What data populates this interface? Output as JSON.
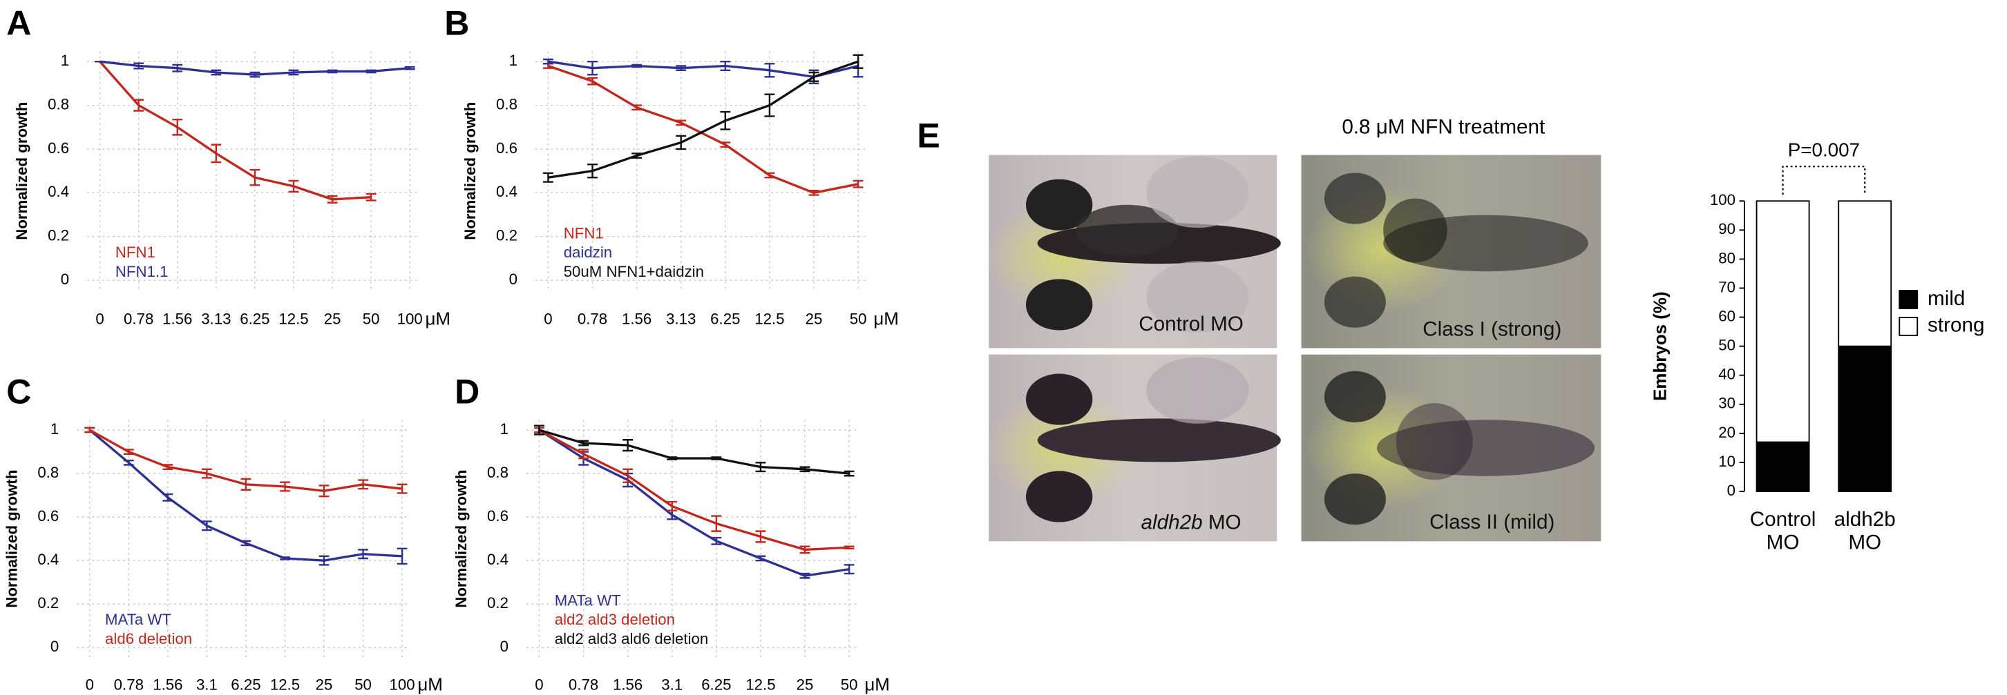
{
  "chart_data": [
    {
      "type": "line",
      "panel_label": "A",
      "ylabel": "Normalized growth",
      "categories": [
        "0",
        "0.78",
        "1.56",
        "3.13",
        "6.25",
        "12.5",
        "25",
        "50",
        "100"
      ],
      "x_unit": "μM",
      "ylim": [
        0,
        1
      ],
      "yticks": [
        0,
        0.2,
        0.4,
        0.6,
        0.8,
        1
      ],
      "grid": true,
      "series": [
        {
          "name": "NFN1",
          "color": "#c0281e",
          "values": [
            1,
            0.8,
            0.7,
            0.58,
            0.47,
            0.43,
            0.37,
            0.38,
            null
          ],
          "errors": [
            0,
            0.025,
            0.035,
            0.04,
            0.035,
            0.025,
            0.015,
            0.015,
            null
          ]
        },
        {
          "name": "NFN1.1",
          "color": "#2e3192",
          "values": [
            1,
            0.98,
            0.97,
            0.95,
            0.94,
            0.95,
            0.955,
            0.955,
            0.97
          ],
          "errors": [
            0,
            0.012,
            0.015,
            0.01,
            0.01,
            0.01,
            0.005,
            0.005,
            0.005
          ]
        }
      ]
    },
    {
      "type": "line",
      "panel_label": "B",
      "ylabel": "Normalized growth",
      "categories": [
        "0",
        "0.78",
        "1.56",
        "3.13",
        "6.25",
        "12.5",
        "25",
        "50"
      ],
      "x_unit": "μM",
      "ylim": [
        0,
        1
      ],
      "yticks": [
        0,
        0.2,
        0.4,
        0.6,
        0.8,
        1
      ],
      "grid": true,
      "series": [
        {
          "name": "NFN1",
          "color": "#c0281e",
          "values": [
            0.98,
            0.91,
            0.79,
            0.72,
            0.62,
            0.48,
            0.4,
            0.44
          ],
          "errors": [
            0.01,
            0.015,
            0.01,
            0.01,
            0.01,
            0.01,
            0.01,
            0.015
          ]
        },
        {
          "name": "daidzin",
          "color": "#2e3192",
          "values": [
            1,
            0.97,
            0.98,
            0.97,
            0.98,
            0.96,
            0.93,
            0.98
          ],
          "errors": [
            0.01,
            0.03,
            0.005,
            0.01,
            0.02,
            0.03,
            0.03,
            0.05
          ]
        },
        {
          "name": "50uM NFN1+daidzin",
          "color": "#111111",
          "values": [
            0.47,
            0.5,
            0.57,
            0.63,
            0.73,
            0.8,
            0.93,
            1
          ],
          "errors": [
            0.02,
            0.03,
            0.01,
            0.03,
            0.04,
            0.05,
            0.02,
            0.03
          ]
        }
      ]
    },
    {
      "type": "line",
      "panel_label": "C",
      "ylabel": "Normalized growth",
      "categories": [
        "0",
        "0.78",
        "1.56",
        "3.1",
        "6.25",
        "12.5",
        "25",
        "50",
        "100"
      ],
      "x_unit": "μM",
      "ylim": [
        0,
        1
      ],
      "yticks": [
        0,
        0.2,
        0.4,
        0.6,
        0.8,
        1
      ],
      "grid": true,
      "series": [
        {
          "name": "MATa WT",
          "color": "#2e3192",
          "values": [
            1,
            0.85,
            0.69,
            0.56,
            0.48,
            0.41,
            0.4,
            0.43,
            0.42
          ],
          "errors": [
            0.01,
            0.01,
            0.015,
            0.02,
            0.01,
            0.005,
            0.02,
            0.02,
            0.035
          ]
        },
        {
          "name": "ald6 deletion",
          "color": "#c0281e",
          "values": [
            1,
            0.9,
            0.83,
            0.8,
            0.75,
            0.74,
            0.72,
            0.75,
            0.73
          ],
          "errors": [
            0.01,
            0.01,
            0.01,
            0.02,
            0.025,
            0.02,
            0.025,
            0.02,
            0.02
          ]
        }
      ]
    },
    {
      "type": "line",
      "panel_label": "D",
      "ylabel": "Normalized growth",
      "categories": [
        "0",
        "0.78",
        "1.56",
        "3.1",
        "6.25",
        "12.5",
        "25",
        "50"
      ],
      "x_unit": "μM",
      "ylim": [
        0,
        1
      ],
      "yticks": [
        0,
        0.2,
        0.4,
        0.6,
        0.8,
        1
      ],
      "grid": true,
      "series": [
        {
          "name": "MATa WT",
          "color": "#2e3192",
          "values": [
            1,
            0.87,
            0.77,
            0.61,
            0.49,
            0.41,
            0.33,
            0.36
          ],
          "errors": [
            0.02,
            0.03,
            0.03,
            0.02,
            0.015,
            0.01,
            0.01,
            0.02
          ]
        },
        {
          "name": "ald2 ald3 deletion",
          "color": "#c0281e",
          "values": [
            1,
            0.89,
            0.79,
            0.65,
            0.57,
            0.51,
            0.45,
            0.46
          ],
          "errors": [
            0.01,
            0.02,
            0.03,
            0.02,
            0.035,
            0.025,
            0.015,
            0.005
          ]
        },
        {
          "name": "ald2 ald3 ald6 deletion",
          "color": "#111111",
          "values": [
            1,
            0.94,
            0.93,
            0.87,
            0.87,
            0.83,
            0.82,
            0.8
          ],
          "errors": [
            0.02,
            0.01,
            0.025,
            0.005,
            0.005,
            0.02,
            0.01,
            0.01
          ]
        }
      ]
    },
    {
      "type": "stacked_bar",
      "ylabel": "Embryos (%)",
      "annotation": "P=0.007",
      "categories": [
        "Control MO",
        "aldh2b MO"
      ],
      "ylim": [
        0,
        100
      ],
      "yticks": [
        0,
        10,
        20,
        30,
        40,
        50,
        60,
        70,
        80,
        90,
        100
      ],
      "series": [
        {
          "name": "mild",
          "color": "#000000",
          "values": [
            17,
            50
          ]
        },
        {
          "name": "strong",
          "color": "#ffffff",
          "values": [
            83,
            50
          ]
        }
      ]
    }
  ],
  "figure_e": {
    "panel_label": "E",
    "title": "0.8 μM NFN treatment",
    "images": [
      {
        "label": "Control MO"
      },
      {
        "label": "Class I (strong)"
      },
      {
        "gene": "aldh2b",
        "label": "MO"
      },
      {
        "label": "Class II (mild)"
      }
    ]
  }
}
